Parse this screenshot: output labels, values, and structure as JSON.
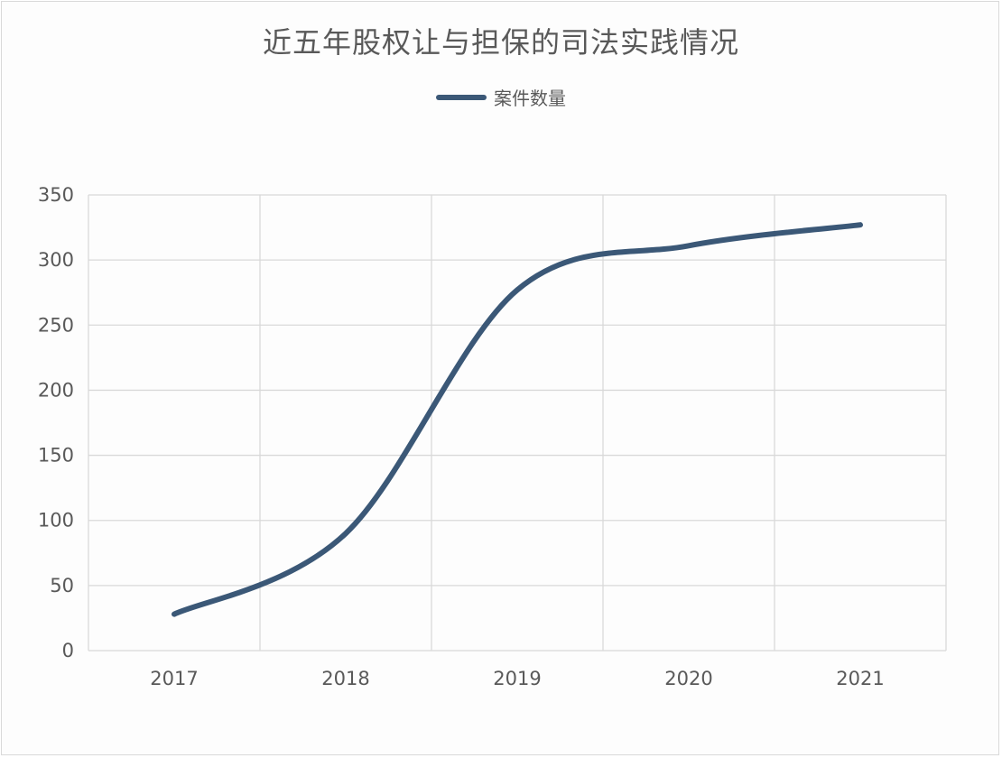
{
  "chart_data": {
    "type": "line",
    "title": "近五年股权让与担保的司法实践情况",
    "categories": [
      "2017",
      "2018",
      "2019",
      "2020",
      "2021"
    ],
    "series": [
      {
        "name": "案件数量",
        "values": [
          28,
          90,
          277,
          311,
          327
        ],
        "color": "#3b5877"
      }
    ],
    "ylim": [
      0,
      350
    ],
    "yticks": [
      0,
      50,
      100,
      150,
      200,
      250,
      300,
      350
    ],
    "smooth": true,
    "grid": true,
    "legend_position": "top"
  }
}
